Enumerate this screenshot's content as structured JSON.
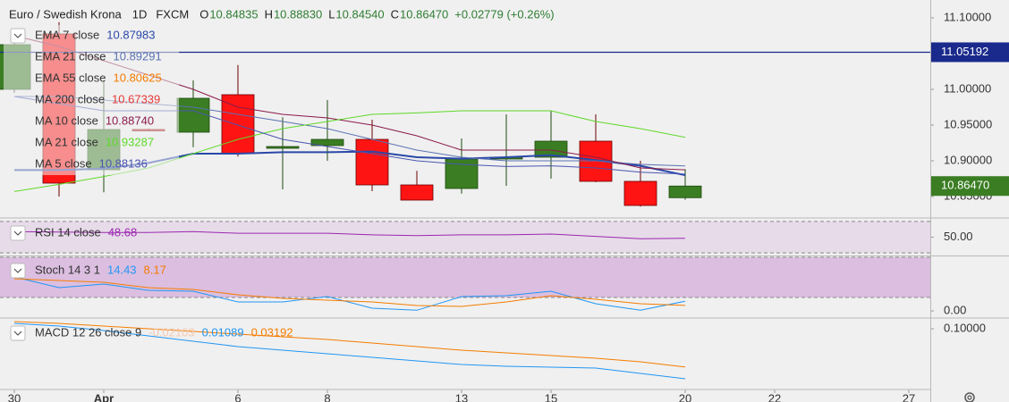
{
  "chart_data": [
    {
      "type": "candlestick",
      "title": "Euro / Swedish Krona",
      "interval": "1D",
      "source": "FXCM",
      "ohlc_header": [
        {
          "label": "O",
          "value": "10.84835"
        },
        {
          "label": "H",
          "value": "10.88830"
        },
        {
          "label": "L",
          "value": "10.84540"
        },
        {
          "label": "C",
          "value": "10.86470"
        }
      ],
      "change": "+0.02779 (+0.26%)",
      "x": [
        0,
        1,
        2,
        3,
        4,
        5,
        6,
        7,
        8,
        9,
        10,
        11,
        12,
        13,
        14,
        15
      ],
      "open": [
        11.0,
        11.0775,
        10.8875,
        10.9438,
        10.94,
        10.9925,
        10.9175,
        10.92125,
        10.93,
        10.86625,
        10.86125,
        10.9025,
        10.905,
        10.9275,
        10.87125,
        10.84835
      ],
      "high": [
        11.07,
        11.094,
        11.0125,
        10.945,
        11.0125,
        11.034,
        10.961,
        10.985,
        10.9575,
        10.886,
        10.93125,
        10.965,
        10.97,
        10.965,
        10.9,
        10.8883
      ],
      "low": [
        10.995,
        10.85,
        10.856,
        10.9425,
        10.919,
        10.906,
        10.86,
        10.9,
        10.8575,
        10.845,
        10.854,
        10.865,
        10.875,
        10.87,
        10.836,
        10.8454
      ],
      "close": [
        11.0625,
        10.86875,
        10.94375,
        10.9425,
        10.9875,
        10.91,
        10.92,
        10.93,
        10.86625,
        10.845,
        10.9025,
        10.905,
        10.9275,
        10.87125,
        10.8375,
        10.8647
      ],
      "up_color": "#3a7d22",
      "down_color": "#ff1414",
      "last_label": "10.86470",
      "xlim": [
        -0.32,
        20.48
      ],
      "xticks": [
        {
          "value": 0,
          "label": "30"
        },
        {
          "value": 2,
          "label": "Apr"
        },
        {
          "value": 5,
          "label": "6"
        },
        {
          "value": 7,
          "label": "8"
        },
        {
          "value": 10,
          "label": "13"
        },
        {
          "value": 12,
          "label": "15"
        },
        {
          "value": 15,
          "label": "20"
        },
        {
          "value": 17,
          "label": "22"
        },
        {
          "value": 20,
          "label": "27"
        }
      ],
      "ylim": [
        10.82125,
        11.125
      ],
      "yticks": [
        {
          "value": 10.85,
          "label": "10.85000"
        },
        {
          "value": 10.9,
          "label": "10.90000"
        },
        {
          "value": 10.95,
          "label": "10.95000"
        },
        {
          "value": 11.0,
          "label": "11.00000"
        },
        {
          "value": 11.1,
          "label": "11.10000"
        }
      ],
      "hline": {
        "value": 11.05192,
        "color": "#1a2a8c"
      },
      "series": [
        {
          "name": "EMA 7 close",
          "color": "#2a48a8",
          "width": 2,
          "legend_value": "10.87983",
          "values": [
            10.887,
            10.887,
            10.889,
            10.897,
            10.91,
            10.91,
            10.912,
            10.912,
            10.913,
            10.905,
            10.903,
            10.905,
            10.908,
            10.901,
            10.893,
            10.87983
          ]
        },
        {
          "name": "EMA 21 close",
          "color": "#5a72b2",
          "width": 1,
          "legend_value": "10.89291",
          "values": [
            10.99,
            10.99,
            10.985,
            10.98,
            10.975,
            10.965,
            10.955,
            10.945,
            10.93,
            10.915,
            10.905,
            10.9,
            10.9,
            10.9,
            10.895,
            10.89291
          ]
        },
        {
          "name": "EMA 55 close",
          "color": "#f57c00",
          "legend_value": "10.80625"
        },
        {
          "name": "MA 200 close",
          "color": "#e53935",
          "legend_value": "10.67339"
        },
        {
          "name": "MA 10 close",
          "color": "#8b1a4a",
          "width": 1,
          "legend_value": "10.88740",
          "values": [
            11.075,
            11.06,
            11.04,
            11.02,
            11.0,
            10.975,
            10.965,
            10.96,
            10.95,
            10.935,
            10.915,
            10.915,
            10.915,
            10.905,
            10.89,
            10.8874
          ]
        },
        {
          "name": "MA 21 close",
          "color": "#5fd92a",
          "width": 1,
          "legend_value": "10.93287",
          "values": [
            10.857,
            10.867,
            10.878,
            10.89,
            10.91,
            10.93,
            10.945,
            10.955,
            10.965,
            10.967,
            10.97,
            10.97,
            10.97,
            10.955,
            10.945,
            10.93287
          ]
        },
        {
          "name": "MA 5 close",
          "color": "#4a55b0",
          "width": 1,
          "legend_value": "10.88136",
          "values": [
            10.99,
            10.98,
            10.97,
            10.97,
            10.97,
            10.95,
            10.93,
            10.92,
            10.91,
            10.9,
            10.895,
            10.892,
            10.893,
            10.89,
            10.884,
            10.88136
          ]
        }
      ]
    },
    {
      "type": "line",
      "title": "RSI 14 close",
      "ylim": [
        26.7,
        73.3
      ],
      "yticks": [
        {
          "value": 50,
          "label": "50.00"
        }
      ],
      "bands": [
        70,
        30
      ],
      "band_color": "rgba(156,39,176,0.10)",
      "series": [
        {
          "color": "#9c27b0",
          "legend_value": "48.68",
          "values": [
            57,
            56.5,
            56,
            56,
            57,
            55,
            55,
            55,
            53,
            52,
            53,
            53,
            54,
            51,
            48,
            48.68
          ]
        }
      ]
    },
    {
      "type": "line",
      "title": "Stoch 14 3 1",
      "ylim": [
        -9.3,
        81.3
      ],
      "yticks": [
        {
          "value": 0,
          "label": "0.00"
        }
      ],
      "bands": [
        80,
        20
      ],
      "band_color": "rgba(156,39,176,0.25)",
      "series": [
        {
          "color": "#2196f3",
          "legend_value": "14.43",
          "values": [
            50.7,
            34.7,
            40,
            30.7,
            29.3,
            13.3,
            13.3,
            21.3,
            4,
            1,
            21.3,
            22.7,
            29.3,
            10.7,
            1,
            14.43
          ]
        },
        {
          "color": "#f57c00",
          "legend_value": "8.17",
          "values": [
            48,
            45.3,
            42.7,
            34.7,
            32,
            24,
            18.7,
            16,
            13.3,
            8,
            6.7,
            13.3,
            22.7,
            17.3,
            10.7,
            8.17
          ]
        }
      ]
    },
    {
      "type": "line",
      "title": "MACD 12 26 close 9",
      "histogram_value": "-0.02103",
      "ylim": [
        -0.0066,
        0.1175
      ],
      "yticks": [
        {
          "value": 0.1,
          "label": "0.10000"
        }
      ],
      "series": [
        {
          "color": "#2196f3",
          "legend_value": "0.01089",
          "values": [
            0.10955,
            0.10477,
            0.09682,
            0.08727,
            0.07772,
            0.06818,
            0.06181,
            0.05545,
            0.04909,
            0.04272,
            0.03636,
            0.03318,
            0.03159,
            0.03,
            0.02045,
            0.01089
          ]
        },
        {
          "color": "#f57c00",
          "legend_value": "0.03192",
          "values": [
            0.11273,
            0.10955,
            0.10477,
            0.1,
            0.09523,
            0.09045,
            0.08568,
            0.08091,
            0.07454,
            0.06818,
            0.06181,
            0.05704,
            0.05227,
            0.0475,
            0.04113,
            0.03192
          ]
        }
      ]
    }
  ]
}
